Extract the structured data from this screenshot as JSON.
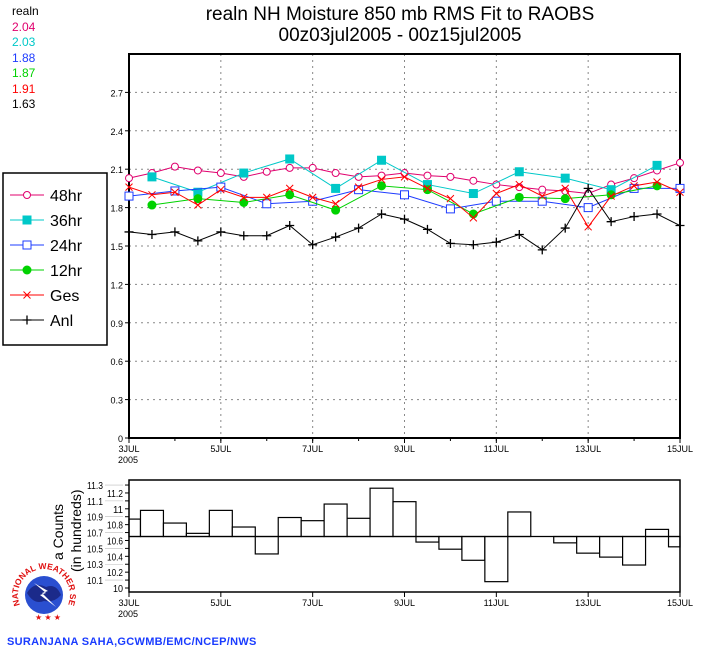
{
  "title": {
    "line1": "realn NH Moisture 850 mb RMS Fit to RAOBS",
    "line2": "00z03jul2005 - 00z15jul2005"
  },
  "stats": {
    "label": "realn",
    "items": [
      {
        "value": "2.04",
        "color": "#e0006e"
      },
      {
        "value": "2.03",
        "color": "#00c8c8"
      },
      {
        "value": "1.88",
        "color": "#1e3cff"
      },
      {
        "value": "1.87",
        "color": "#00d200"
      },
      {
        "value": "1.91",
        "color": "#ff0000"
      },
      {
        "value": "1.63",
        "color": "#000000"
      }
    ]
  },
  "credit": "SURANJANA SAHA,GCWMB/EMC/NCEP/NWS",
  "logo": {
    "text": "NATIONAL WEATHER SERVICE"
  },
  "chart_data": [
    {
      "type": "line",
      "title": "realn NH Moisture 850 mb RMS Fit to RAOBS",
      "subtitle": "00z03jul2005 - 00z15jul2005",
      "x_ticks": [
        "3JUL",
        "5JUL",
        "7JUL",
        "9JUL",
        "11JUL",
        "13JUL",
        "15JUL"
      ],
      "x_year_label": "2005",
      "xlim": [
        "00z03jul2005",
        "00z15jul2005"
      ],
      "x_step_hours": 12,
      "ylim": [
        0,
        3.0
      ],
      "y_ticks": [
        "0",
        "0.3",
        "0.6",
        "0.9",
        "1.2",
        "1.5",
        "1.8",
        "2.1",
        "2.4",
        "2.7"
      ],
      "grid": true,
      "legend_placement": "left",
      "series": [
        {
          "name": "48hr",
          "color": "#e0006e",
          "marker": "open-circle",
          "start_step": 0,
          "every": 1,
          "values": [
            2.03,
            2.07,
            2.12,
            2.09,
            2.07,
            2.04,
            2.08,
            2.11,
            2.11,
            2.07,
            2.04,
            2.05,
            2.07,
            2.05,
            2.04,
            2.01,
            1.98,
            1.96,
            1.94,
            1.93,
            1.91,
            1.98,
            2.03,
            2.09,
            2.15
          ]
        },
        {
          "name": "36hr",
          "color": "#00c8c8",
          "marker": "filled-square",
          "start_step": 1,
          "every": 2,
          "values": [
            2.04,
            1.92,
            2.07,
            2.18,
            1.95,
            2.17,
            1.98,
            1.91,
            2.08,
            2.03,
            1.94,
            2.13
          ]
        },
        {
          "name": "24hr",
          "color": "#1e3cff",
          "marker": "open-square",
          "start_step": 0,
          "every": 2,
          "values": [
            1.89,
            1.93,
            1.96,
            1.83,
            1.85,
            1.94,
            1.9,
            1.79,
            1.85,
            1.85,
            1.8,
            1.95,
            1.95
          ]
        },
        {
          "name": "12hr",
          "color": "#00d200",
          "marker": "filled-circle",
          "start_step": 1,
          "every": 2,
          "values": [
            1.82,
            1.87,
            1.84,
            1.9,
            1.78,
            1.97,
            1.94,
            1.75,
            1.88,
            1.87,
            1.9,
            1.97
          ]
        },
        {
          "name": "Ges",
          "color": "#ff0000",
          "marker": "x",
          "start_step": 0,
          "every": 1,
          "values": [
            1.96,
            1.9,
            1.92,
            1.82,
            1.94,
            1.88,
            1.88,
            1.95,
            1.88,
            1.83,
            1.96,
            2.02,
            2.04,
            1.95,
            1.87,
            1.72,
            1.91,
            1.98,
            1.89,
            1.95,
            1.65,
            1.89,
            1.97,
            2.0,
            1.92
          ]
        },
        {
          "name": "Anl",
          "color": "#000000",
          "marker": "plus",
          "start_step": 0,
          "every": 1,
          "values": [
            1.61,
            1.59,
            1.61,
            1.54,
            1.61,
            1.58,
            1.58,
            1.66,
            1.51,
            1.57,
            1.64,
            1.75,
            1.71,
            1.63,
            1.52,
            1.51,
            1.53,
            1.59,
            1.47,
            1.64,
            1.95,
            1.69,
            1.73,
            1.75,
            1.66
          ]
        }
      ]
    },
    {
      "type": "bar",
      "ylabel": "a Counts",
      "ylabel2": "(in hundreds)",
      "x_ticks": [
        "3JUL",
        "5JUL",
        "7JUL",
        "9JUL",
        "11JUL",
        "13JUL",
        "15JUL"
      ],
      "x_year_label": "2005",
      "ylim": [
        10,
        11.35
      ],
      "y_ticks": [
        "10",
        "10.1",
        "10.2",
        "10.3",
        "10.4",
        "10.5",
        "10.6",
        "10.7",
        "10.8",
        "10.9",
        "11",
        "11.1",
        "11.2",
        "11.3"
      ],
      "baseline": 10.65,
      "values": [
        10.87,
        10.98,
        10.82,
        10.69,
        10.98,
        10.77,
        10.43,
        10.89,
        10.85,
        11.06,
        10.88,
        11.26,
        11.09,
        10.58,
        10.49,
        10.35,
        10.08,
        10.96,
        10.65,
        10.57,
        10.44,
        10.39,
        10.29,
        10.74,
        10.52
      ]
    }
  ]
}
